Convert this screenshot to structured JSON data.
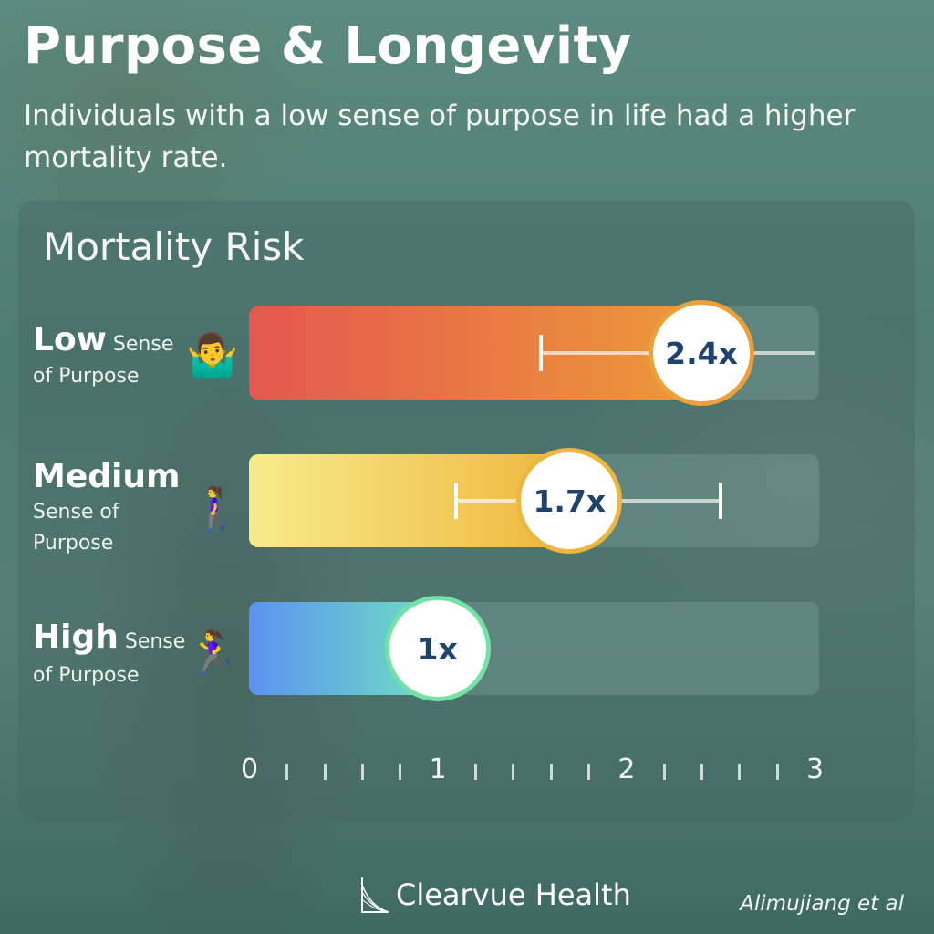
{
  "header": {
    "title": "Purpose & Longevity",
    "subtitle": "Individuals with a low sense of purpose in life had a higher mortality rate."
  },
  "chart_data": {
    "type": "bar",
    "orientation": "horizontal",
    "title": "Mortality Risk",
    "xlim": [
      0,
      3
    ],
    "x_ticks": [
      "0",
      "1",
      "2",
      "3"
    ],
    "rows": [
      {
        "strong": "Low",
        "rest": " Sense",
        "rest2": "of Purpose",
        "value": 2.4,
        "label": "2.4x",
        "ci": [
          1.55,
          3.0
        ],
        "emoji": "🤷‍♂️",
        "icon": "shrugging-person-icon",
        "colors": [
          "#e5574f",
          "#ec9a3a"
        ],
        "ring": "#eda039"
      },
      {
        "strong": "Medium",
        "rest": "",
        "rest2": "Sense of Purpose",
        "value": 1.7,
        "label": "1.7x",
        "ci": [
          1.1,
          2.5
        ],
        "emoji": "🚶‍♀️",
        "icon": "walking-person-icon",
        "colors": [
          "#f6ec8a",
          "#efb63d"
        ],
        "ring": "#efb63d"
      },
      {
        "strong": "High",
        "rest": " Sense",
        "rest2": "of Purpose",
        "value": 1.0,
        "label": "1x",
        "ci": null,
        "emoji": "🏃‍♀️",
        "icon": "running-person-icon",
        "colors": [
          "#5c92f2",
          "#6ee0c0"
        ],
        "ring": "#74e1a6"
      }
    ]
  },
  "footer": {
    "brand": "Clearvue Health",
    "source": "Alimujiang et al"
  }
}
